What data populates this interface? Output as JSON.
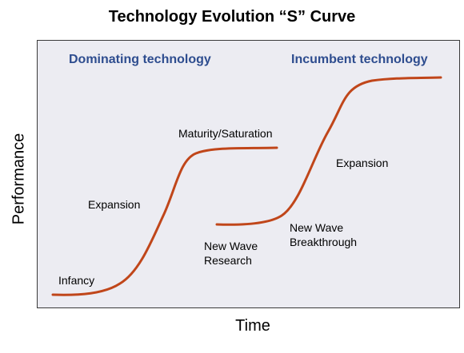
{
  "title": "Technology Evolution “S” Curve",
  "axes": {
    "y_label": "Performance",
    "x_label": "Time"
  },
  "headings": {
    "left": "Dominating technology",
    "right": "Incumbent technology"
  },
  "stage_labels": {
    "infancy": "Infancy",
    "expansion_1": "Expansion",
    "maturity": "Maturity/Saturation",
    "new_wave_research": [
      "New Wave",
      "Research"
    ],
    "new_wave_breakthrough": [
      "New Wave",
      "Breakthrough"
    ],
    "expansion_2": "Expansion"
  },
  "colors": {
    "curve": "#c0461a",
    "heading": "#2e4d8f",
    "panel_background": "#ececf2"
  }
}
